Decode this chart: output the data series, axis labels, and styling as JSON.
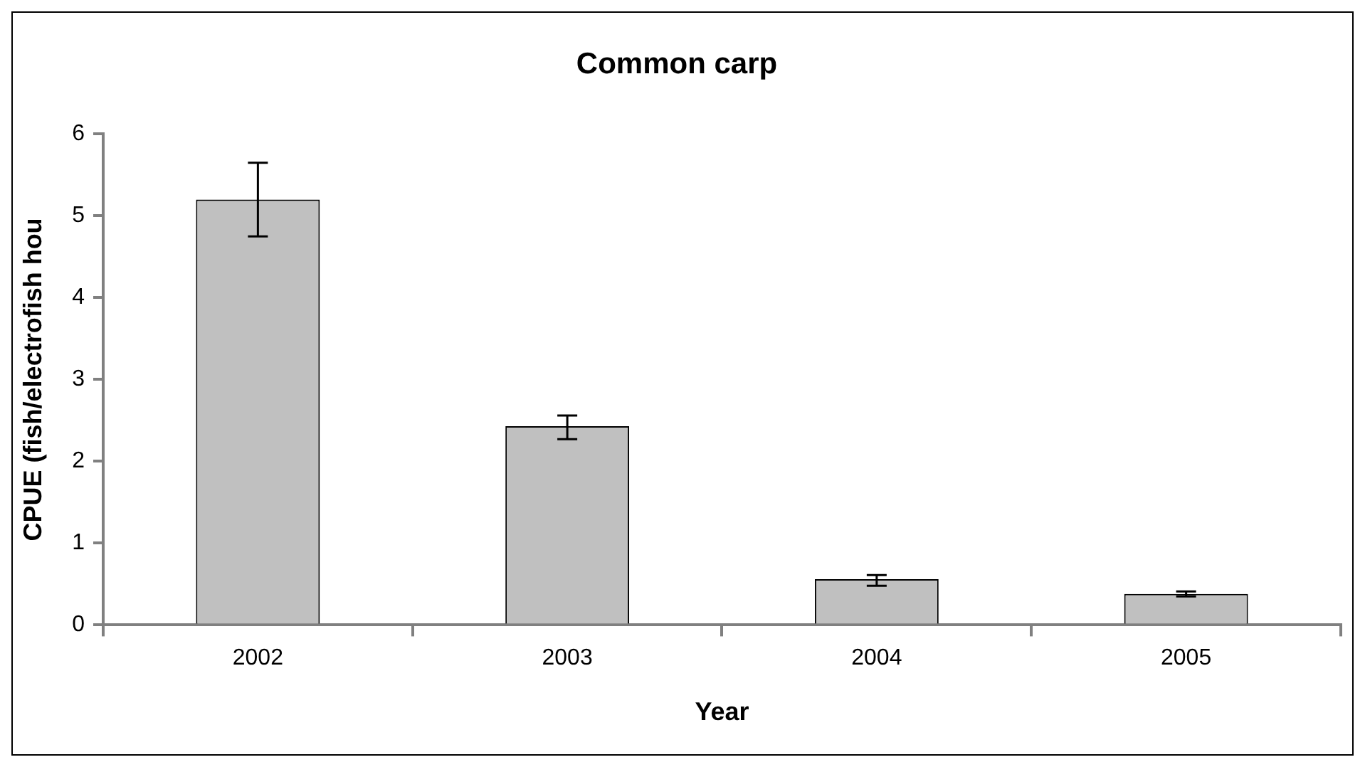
{
  "chart_data": {
    "type": "bar",
    "title": "Common carp",
    "xlabel": "Year",
    "ylabel": "CPUE (fish/electrofish hou",
    "categories": [
      "2002",
      "2003",
      "2004",
      "2005"
    ],
    "values": [
      5.2,
      2.43,
      0.56,
      0.38
    ],
    "errors": [
      [
        4.75,
        5.65
      ],
      [
        2.27,
        2.56
      ],
      [
        0.48,
        0.61
      ],
      [
        0.35,
        0.41
      ]
    ],
    "color": "#c0c0c0",
    "ylim": [
      0,
      6
    ],
    "yticks": [
      0,
      1,
      2,
      3,
      4,
      5,
      6
    ],
    "grid": false,
    "legend": false
  }
}
